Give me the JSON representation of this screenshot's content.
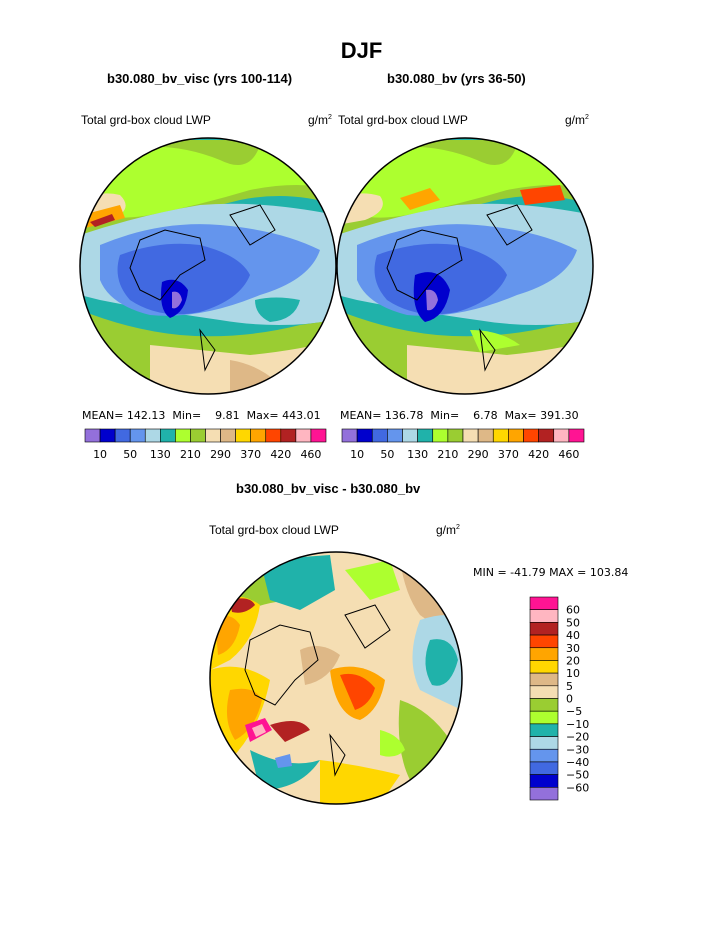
{
  "page": {
    "title": "DJF",
    "left_panel_title": "b30.080_bv_visc (yrs 100-114)",
    "right_panel_title": "b30.080_bv (yrs 36-50)",
    "diff_title": "b30.080_bv_visc - b30.080_bv"
  },
  "chart_data": [
    {
      "type": "polar-contour-map",
      "name": "b30.080_bv_visc (yrs 100-114)",
      "variable": "Total grd-box cloud LWP",
      "units_base": "g/m",
      "units_exp": "2",
      "stats": {
        "mean_label": "MEAN=",
        "mean": "142.13",
        "min_label": "Min=",
        "min": "9.81",
        "max_label": "Max=",
        "max": "443.01"
      },
      "levels": [
        10,
        50,
        130,
        210,
        290,
        370,
        420,
        460
      ],
      "colors": [
        "#9370db",
        "#0000cd",
        "#4169e1",
        "#6495ed",
        "#add8e6",
        "#20b2aa",
        "#adff2f",
        "#9acd32",
        "#f5deb3",
        "#deb887",
        "#ffd700",
        "#ffa500",
        "#ff4500",
        "#b22222",
        "#ffb6c1",
        "#ff1493"
      ]
    },
    {
      "type": "polar-contour-map",
      "name": "b30.080_bv (yrs 36-50)",
      "variable": "Total grd-box cloud LWP",
      "units_base": "g/m",
      "units_exp": "2",
      "stats": {
        "mean_label": "MEAN=",
        "mean": "136.78",
        "min_label": "Min=",
        "min": "6.78",
        "max_label": "Max=",
        "max": "391.30"
      },
      "levels": [
        10,
        50,
        130,
        210,
        290,
        370,
        420,
        460
      ],
      "colors": [
        "#9370db",
        "#0000cd",
        "#4169e1",
        "#6495ed",
        "#add8e6",
        "#20b2aa",
        "#adff2f",
        "#9acd32",
        "#f5deb3",
        "#deb887",
        "#ffd700",
        "#ffa500",
        "#ff4500",
        "#b22222",
        "#ffb6c1",
        "#ff1493"
      ]
    },
    {
      "type": "polar-contour-map",
      "name": "b30.080_bv_visc - b30.080_bv",
      "variable": "Total grd-box cloud LWP",
      "units_base": "g/m",
      "units_exp": "2",
      "stats_text": "MIN = -41.79 MAX = 103.84",
      "levels": [
        "60",
        "50",
        "40",
        "30",
        "20",
        "10",
        "5",
        "0",
        "−5",
        "−10",
        "−20",
        "−30",
        "−40",
        "−50",
        "−60"
      ],
      "colors": [
        "#ff1493",
        "#ffb6c1",
        "#b22222",
        "#ff4500",
        "#ffa500",
        "#ffd700",
        "#deb887",
        "#f5deb3",
        "#9acd32",
        "#adff2f",
        "#20b2aa",
        "#add8e6",
        "#6495ed",
        "#4169e1",
        "#0000cd",
        "#9370db"
      ]
    }
  ]
}
